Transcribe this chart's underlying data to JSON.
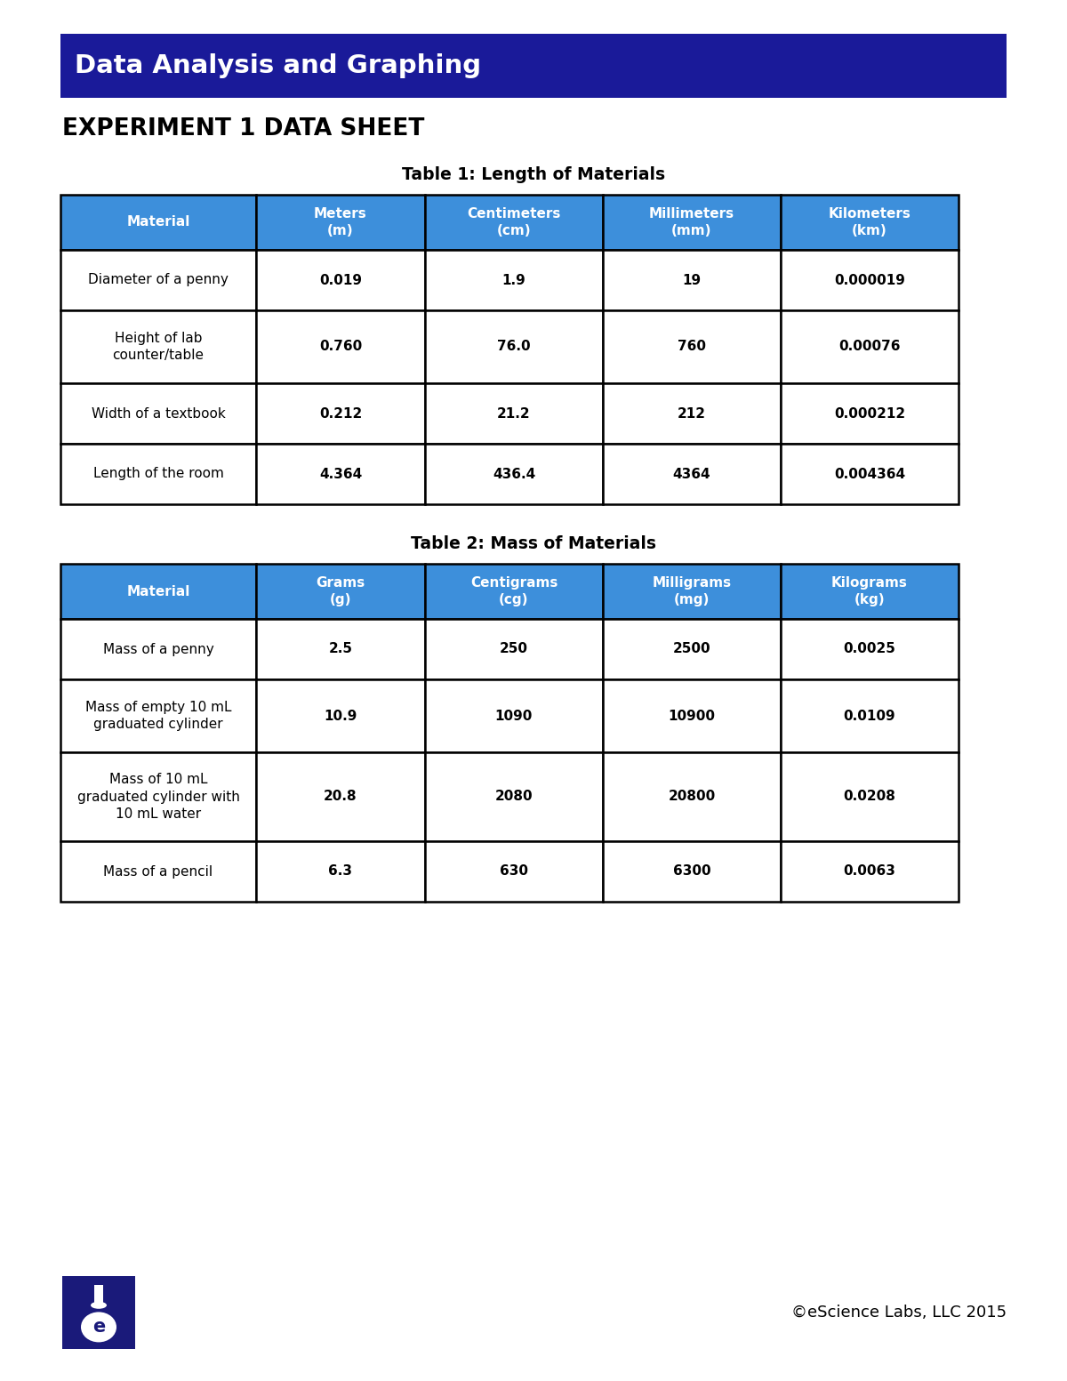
{
  "header_title": "Data Analysis and Graphing",
  "header_bg_color": "#1e1e9e",
  "subheader": "EXPERIMENT 1 DATA SHEET",
  "table1_title": "Table 1: Length of Materials",
  "table1_col_headers": [
    "Material",
    "Meters\n(m)",
    "Centimeters\n(cm)",
    "Millimeters\n(mm)",
    "Kilometers\n(km)"
  ],
  "table1_rows": [
    [
      "Diameter of a penny",
      "0.019",
      "1.9",
      "19",
      "0.000019"
    ],
    [
      "Height of lab\ncounter/table",
      "0.760",
      "76.0",
      "760",
      "0.00076"
    ],
    [
      "Width of a textbook",
      "0.212",
      "21.2",
      "212",
      "0.000212"
    ],
    [
      "Length of the room",
      "4.364",
      "436.4",
      "4364",
      "0.004364"
    ]
  ],
  "table2_title": "Table 2: Mass of Materials",
  "table2_col_headers": [
    "Material",
    "Grams\n(g)",
    "Centigrams\n(cg)",
    "Milligrams\n(mg)",
    "Kilograms\n(kg)"
  ],
  "table2_rows": [
    [
      "Mass of a penny",
      "2.5",
      "250",
      "2500",
      "0.0025"
    ],
    [
      "Mass of empty 10 mL\ngraduated cylinder",
      "10.9",
      "1090",
      "10900",
      "0.0109"
    ],
    [
      "Mass of 10 mL\ngraduated cylinder with\n10 mL water",
      "20.8",
      "2080",
      "20800",
      "0.0208"
    ],
    [
      "Mass of a pencil",
      "6.3",
      "630",
      "6300",
      "0.0063"
    ]
  ],
  "header_dark_blue": "#1a1a99",
  "cell_blue": "#3d8fdb",
  "white": "#ffffff",
  "black": "#000000",
  "border_color": "#000000",
  "logo_blue": "#1a1a7a",
  "copyright_text": "©eScience Labs, LLC 2015",
  "background_color": "#ffffff",
  "fig_width": 12.0,
  "fig_height": 15.53,
  "dpi": 100
}
